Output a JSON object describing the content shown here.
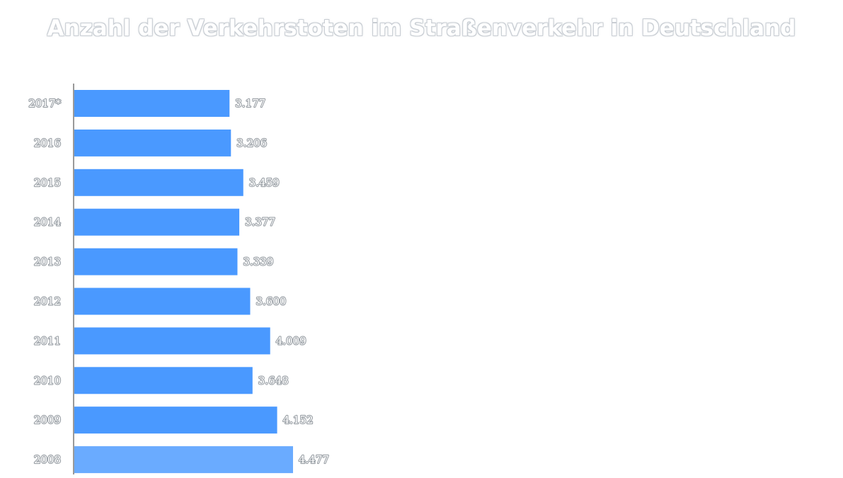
{
  "title": "Anzahl der Verkehrstoten im Straßenverkehr in Deutschland",
  "chart_data": {
    "type": "bar",
    "orientation": "horizontal",
    "title": "Anzahl der Verkehrstoten im Straßenverkehr in Deutschland",
    "xlabel": "",
    "ylabel": "",
    "categories": [
      "2017*",
      "2016",
      "2015",
      "2014",
      "2013",
      "2012",
      "2011",
      "2010",
      "2009",
      "2008"
    ],
    "values": [
      3177,
      3206,
      3459,
      3377,
      3339,
      3600,
      4009,
      3648,
      4152,
      4477
    ],
    "value_labels": [
      "3.177",
      "3.206",
      "3.459",
      "3.377",
      "3.339",
      "3.600",
      "4.009",
      "3.648",
      "4.152",
      "4.477"
    ],
    "xlim": [
      0,
      4477
    ],
    "grid": false,
    "legend": "none",
    "bar_color": "#4a99ff",
    "bar_color_highlight": "#6aabff"
  }
}
